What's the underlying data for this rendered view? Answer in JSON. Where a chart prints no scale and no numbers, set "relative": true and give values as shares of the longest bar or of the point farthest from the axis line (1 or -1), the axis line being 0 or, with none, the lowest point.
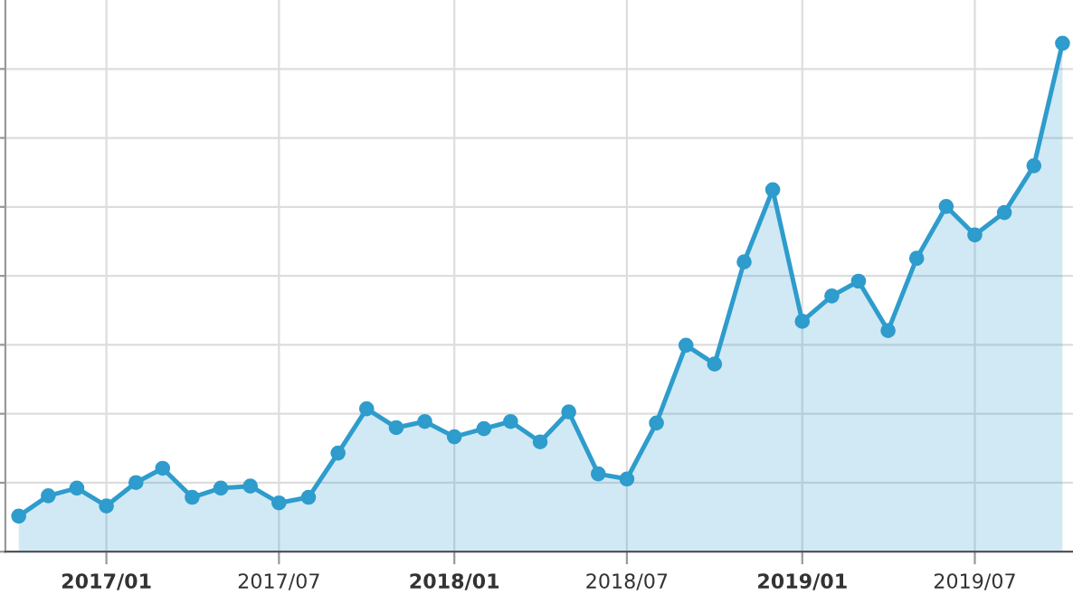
{
  "chart_data": {
    "type": "area",
    "relative": true,
    "x": [
      "2016-10",
      "2016-11",
      "2016-12",
      "2017-01",
      "2017-02",
      "2017-03",
      "2017-04",
      "2017-05",
      "2017-06",
      "2017-07",
      "2017-08",
      "2017-09",
      "2017-10",
      "2017-11",
      "2017-12",
      "2018-01",
      "2018-02",
      "2018-03",
      "2018-04",
      "2018-05",
      "2018-06",
      "2018-07",
      "2018-08",
      "2018-09",
      "2018-10",
      "2018-11",
      "2018-12",
      "2019-01",
      "2019-02",
      "2019-03",
      "2019-04",
      "2019-05",
      "2019-06",
      "2019-07",
      "2019-08",
      "2019-09",
      "2019-10"
    ],
    "series": [
      {
        "color": "#2e9ccc",
        "values": [
          0.07,
          0.11,
          0.125,
          0.09,
          0.136,
          0.164,
          0.107,
          0.125,
          0.129,
          0.096,
          0.107,
          0.194,
          0.281,
          0.244,
          0.256,
          0.226,
          0.242,
          0.256,
          0.216,
          0.275,
          0.153,
          0.143,
          0.253,
          0.406,
          0.369,
          0.57,
          0.712,
          0.453,
          0.503,
          0.532,
          0.435,
          0.577,
          0.679,
          0.623,
          0.667,
          0.759,
          1
        ]
      }
    ],
    "xlim": [
      "2016-09-17",
      "2019-10-12"
    ],
    "xticks": [
      {
        "value": "2017-01",
        "label": "2017/01"
      },
      {
        "value": "2017-07",
        "label": "2017/07"
      },
      {
        "value": "2018-01",
        "label": "2018/01"
      },
      {
        "value": "2018-07",
        "label": "2018/07"
      },
      {
        "value": "2019-01",
        "label": "2019/01"
      },
      {
        "value": "2019-07",
        "label": "2019/07"
      }
    ],
    "grid": true,
    "marker": "circle",
    "line_style": "solid"
  }
}
